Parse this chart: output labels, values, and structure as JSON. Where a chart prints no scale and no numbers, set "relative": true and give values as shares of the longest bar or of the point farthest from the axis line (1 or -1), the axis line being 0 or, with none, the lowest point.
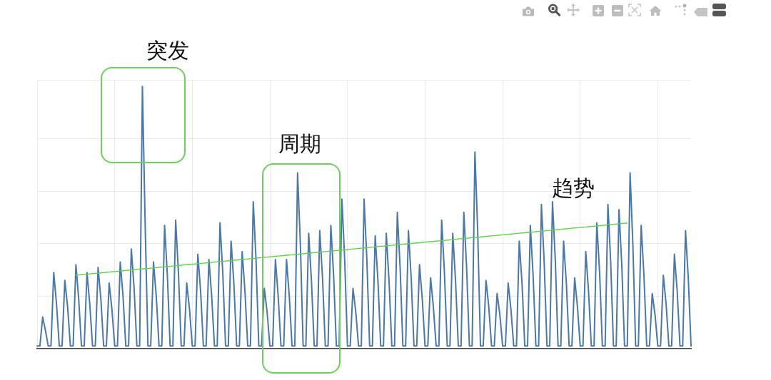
{
  "chart_data": {
    "type": "line",
    "relative": true,
    "grid": true,
    "annotations": [
      "突发",
      "周期",
      "趋势"
    ],
    "categories": [
      null,
      null,
      null,
      null,
      null,
      null,
      null,
      null,
      null,
      null,
      null,
      null,
      null,
      null,
      null,
      null,
      null,
      null,
      null,
      null,
      null,
      null,
      null,
      null,
      null,
      null,
      null,
      null,
      null,
      null,
      null,
      null,
      null,
      null,
      null,
      null,
      null,
      null,
      null,
      null,
      null,
      null,
      null,
      null,
      null,
      null,
      null,
      null,
      null,
      null,
      null,
      null,
      null,
      null,
      null,
      null,
      null,
      null,
      null,
      null,
      null,
      null,
      null,
      null,
      null,
      null,
      null,
      null,
      null,
      null,
      null,
      null,
      null,
      null,
      null,
      null,
      null,
      null,
      null,
      null,
      null,
      null,
      null,
      null,
      null,
      null,
      null,
      null,
      null,
      null,
      null,
      null,
      null,
      null,
      null,
      null,
      null,
      null,
      null,
      null,
      null,
      null,
      null,
      null,
      null,
      null,
      null,
      null,
      null,
      null,
      null,
      null,
      null,
      null,
      null,
      null,
      null,
      null,
      null,
      null,
      null,
      null,
      null,
      null,
      null,
      null,
      null,
      null,
      null,
      null,
      null,
      null,
      null,
      null,
      null,
      null,
      null,
      null,
      null,
      null,
      null,
      null,
      null,
      null,
      null,
      null,
      null,
      null,
      null,
      null,
      null,
      null,
      null,
      null,
      null,
      null,
      null,
      null,
      null,
      null,
      null,
      null,
      null,
      null,
      null,
      null,
      null,
      null,
      null,
      null,
      null,
      null,
      null,
      null,
      null,
      null,
      null,
      null,
      null,
      null,
      null,
      null,
      null,
      null,
      null,
      null,
      null,
      null,
      null,
      null,
      null,
      null,
      null,
      null,
      null,
      null,
      null,
      null,
      null,
      null,
      null,
      null,
      null,
      null,
      null,
      null,
      null,
      null,
      null,
      null,
      null,
      null,
      null,
      null,
      null,
      null,
      null,
      null,
      null,
      null,
      null,
      null,
      null,
      null,
      null,
      null,
      null,
      null,
      null,
      null,
      null,
      null,
      null,
      null,
      null,
      null,
      null
    ],
    "series": [
      {
        "color": "#4a78ae",
        "values": [
          0.01,
          0.01,
          0.12,
          0.07,
          0.01,
          0.01,
          0.29,
          0.17,
          0.01,
          0.01,
          0.26,
          0.16,
          0.01,
          0.01,
          0.32,
          0.19,
          0.01,
          0.01,
          0.29,
          0.17,
          0.01,
          0.01,
          0.31,
          0.19,
          0.01,
          0.01,
          0.25,
          0.15,
          0.01,
          0.01,
          0.33,
          0.2,
          0.01,
          0.01,
          0.38,
          0.23,
          0.01,
          0.01,
          1,
          0.47,
          0.01,
          0.01,
          0.33,
          0.2,
          0.01,
          0.01,
          0.47,
          0.28,
          0.01,
          0.01,
          0.49,
          0.29,
          0.01,
          0.01,
          0.25,
          0.15,
          0.01,
          0.01,
          0.36,
          0.22,
          0.01,
          0.01,
          0.34,
          0.2,
          0.01,
          0.01,
          0.48,
          0.29,
          0.01,
          0.01,
          0.41,
          0.25,
          0.01,
          0.01,
          0.37,
          0.22,
          0.01,
          0.01,
          0.56,
          0.34,
          0.01,
          0.01,
          0.23,
          0.14,
          0.01,
          0.01,
          0.34,
          0.2,
          0.01,
          0.01,
          0.34,
          0.2,
          0.01,
          0.01,
          0.67,
          0.4,
          0.01,
          0.01,
          0.44,
          0.26,
          0.01,
          0.01,
          0.45,
          0.27,
          0.01,
          0.01,
          0.47,
          0.28,
          0.01,
          0.01,
          0.57,
          0.34,
          0.01,
          0.01,
          0.23,
          0.14,
          0.01,
          0.01,
          0.57,
          0.34,
          0.01,
          0.01,
          0.43,
          0.26,
          0.01,
          0.01,
          0.44,
          0.26,
          0.01,
          0.01,
          0.52,
          0.31,
          0.01,
          0.01,
          0.45,
          0.27,
          0.01,
          0.01,
          0.32,
          0.19,
          0.01,
          0.01,
          0.27,
          0.16,
          0.01,
          0.01,
          0.49,
          0.29,
          0.01,
          0.01,
          0.44,
          0.26,
          0.01,
          0.01,
          0.52,
          0.31,
          0.01,
          0.01,
          0.75,
          0.45,
          0.01,
          0.01,
          0.26,
          0.16,
          0.01,
          0.01,
          0.21,
          0.13,
          0.01,
          0.01,
          0.25,
          0.15,
          0.01,
          0.01,
          0.41,
          0.25,
          0.01,
          0.01,
          0.47,
          0.28,
          0.01,
          0.01,
          0.55,
          0.33,
          0.01,
          0.01,
          0.56,
          0.34,
          0.01,
          0.01,
          0.41,
          0.25,
          0.01,
          0.01,
          0.27,
          0.16,
          0.01,
          0.01,
          0.37,
          0.22,
          0.01,
          0.01,
          0.48,
          0.29,
          0.01,
          0.01,
          0.55,
          0.33,
          0.01,
          0.01,
          0.53,
          0.32,
          0.01,
          0.01,
          0.67,
          0.4,
          0.01,
          0.01,
          0.47,
          0.28,
          0.01,
          0.01,
          0.21,
          0.13,
          0.01,
          0.01,
          0.28,
          0.17,
          0.01,
          0.01,
          0.36,
          0.22,
          0.01,
          0.01,
          0.45,
          0.27,
          0.01
        ]
      },
      {
        "type": "line",
        "color": "#5fd34a",
        "values": [
          null,
          null,
          null,
          null,
          null,
          null,
          null,
          null,
          null,
          null,
          null,
          null,
          null,
          null,
          0.28,
          0.281,
          0.282,
          0.283,
          0.284,
          0.285,
          0.286,
          0.287,
          0.288,
          0.289,
          0.29,
          0.291,
          0.292,
          0.293,
          0.294,
          0.295,
          0.296,
          0.297,
          0.298,
          0.299,
          0.3,
          0.301,
          0.302,
          0.303,
          0.304,
          0.305,
          0.306,
          0.307,
          0.308,
          0.309,
          0.31,
          0.311,
          0.312,
          0.313,
          0.314,
          0.315,
          0.316,
          0.317,
          0.318,
          0.319,
          0.32,
          0.321,
          0.322,
          0.323,
          0.324,
          0.325,
          0.326,
          0.327,
          0.328,
          0.329,
          0.33,
          0.331,
          0.332,
          0.333,
          0.334,
          0.335,
          0.336,
          0.337,
          0.338,
          0.339,
          0.34,
          0.341,
          0.342,
          0.343,
          0.344,
          0.345,
          0.346,
          0.347,
          0.348,
          0.349,
          0.35,
          0.351,
          0.352,
          0.353,
          0.354,
          0.355,
          0.356,
          0.357,
          0.358,
          0.359,
          0.36,
          0.361,
          0.362,
          0.363,
          0.364,
          0.365,
          0.366,
          0.367,
          0.368,
          0.369,
          0.37,
          0.371,
          0.372,
          0.373,
          0.374,
          0.375,
          0.376,
          0.377,
          0.378,
          0.379,
          0.38,
          0.381,
          0.382,
          0.383,
          0.384,
          0.385,
          0.386,
          0.387,
          0.388,
          0.389,
          0.39,
          0.391,
          0.392,
          0.393,
          0.394,
          0.395,
          0.396,
          0.397,
          0.398,
          0.399,
          0.4,
          0.401,
          0.402,
          0.403,
          0.404,
          0.405,
          0.406,
          0.407,
          0.408,
          0.409,
          0.41,
          0.411,
          0.412,
          0.413,
          0.414,
          0.415,
          0.416,
          0.417,
          0.418,
          0.419,
          0.42,
          0.421,
          0.422,
          0.423,
          0.424,
          0.425,
          0.426,
          0.427,
          0.428,
          0.429,
          0.43,
          0.431,
          0.432,
          0.433,
          0.434,
          0.435,
          0.436,
          0.437,
          0.438,
          0.439,
          0.44,
          0.441,
          0.442,
          0.443,
          0.444,
          0.445,
          0.446,
          0.447,
          0.448,
          0.449,
          0.45,
          0.451,
          0.452,
          0.453,
          0.454,
          0.455,
          0.456,
          0.457,
          0.458,
          0.459,
          0.46,
          0.461,
          0.462,
          0.463,
          0.464,
          0.465,
          0.466,
          0.467,
          0.468,
          0.469,
          0.47,
          0.471,
          0.472,
          0.473,
          0.474,
          0.475,
          0.476,
          0.477,
          0.478,
          0.479,
          null,
          null,
          null,
          null,
          null,
          null,
          null,
          null,
          null,
          null,
          null,
          null,
          null,
          null,
          null,
          null,
          null,
          null,
          null,
          null,
          null,
          null,
          null
        ]
      }
    ]
  }
}
